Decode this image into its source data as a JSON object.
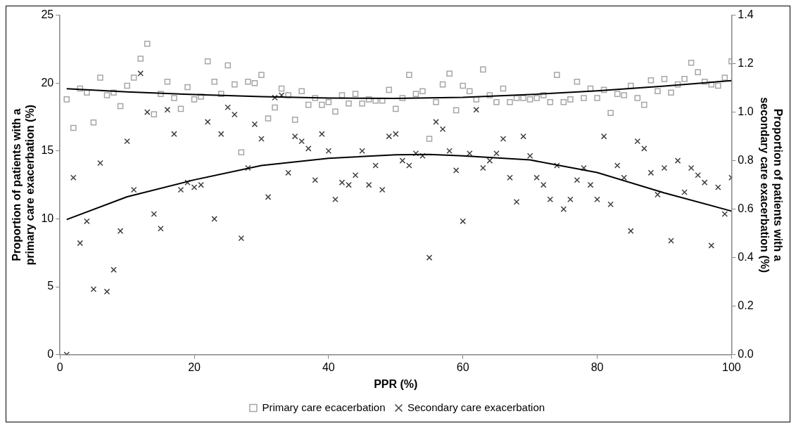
{
  "chart_data": {
    "type": "scatter",
    "xlabel": "PPR (%)",
    "ylabel": "Proportion of patients with a primary care exacerbation (%)",
    "y2label": "Proportion of patients with a secondary care exacerbation (%)",
    "xlim": [
      0,
      100
    ],
    "xticks": [
      0,
      20,
      40,
      60,
      80,
      100
    ],
    "ylim": [
      0,
      25
    ],
    "yticks": [
      0,
      5,
      10,
      15,
      20,
      25
    ],
    "y2lim": [
      0,
      1.4
    ],
    "y2ticks": [
      {
        "value": 0,
        "label": "0.0"
      },
      {
        "value": 0.2,
        "label": "0.2"
      },
      {
        "value": 0.4,
        "label": "0.4"
      },
      {
        "value": 0.6,
        "label": "0.6"
      },
      {
        "value": 0.8,
        "label": "0.8"
      },
      {
        "value": 1,
        "label": "1.0"
      },
      {
        "value": 1.2,
        "label": "1.2"
      },
      {
        "value": 1.4,
        "label": "1.4"
      }
    ],
    "grid": false,
    "legend": "bottom",
    "x": [
      1,
      2,
      3,
      4,
      5,
      6,
      7,
      8,
      9,
      10,
      11,
      12,
      13,
      14,
      15,
      16,
      17,
      18,
      19,
      20,
      21,
      22,
      23,
      24,
      25,
      26,
      27,
      28,
      29,
      30,
      31,
      32,
      33,
      34,
      35,
      36,
      37,
      38,
      39,
      40,
      41,
      42,
      43,
      44,
      45,
      46,
      47,
      48,
      49,
      50,
      51,
      52,
      53,
      54,
      55,
      56,
      57,
      58,
      59,
      60,
      61,
      62,
      63,
      64,
      65,
      66,
      67,
      68,
      69,
      70,
      71,
      72,
      73,
      74,
      75,
      76,
      77,
      78,
      79,
      80,
      81,
      82,
      83,
      84,
      85,
      86,
      87,
      88,
      89,
      90,
      91,
      92,
      93,
      94,
      95,
      96,
      97,
      98,
      99,
      100
    ],
    "series": [
      {
        "name": "Primary care ecacerbation",
        "marker": "square",
        "color": "#a6a6a6",
        "values": [
          18.8,
          16.7,
          19.6,
          19.3,
          17.1,
          20.4,
          19.1,
          19.3,
          18.3,
          19.8,
          20.4,
          21.8,
          22.9,
          17.7,
          19.2,
          20.1,
          18.9,
          18.1,
          19.7,
          18.8,
          19.0,
          21.6,
          20.1,
          19.2,
          21.3,
          19.9,
          14.9,
          20.1,
          20.0,
          20.6,
          17.4,
          18.2,
          19.6,
          19.1,
          17.3,
          19.4,
          18.4,
          18.9,
          18.4,
          18.6,
          17.9,
          19.1,
          18.5,
          19.2,
          18.5,
          18.8,
          18.7,
          18.7,
          19.5,
          18.1,
          18.9,
          20.6,
          19.2,
          19.4,
          15.9,
          18.6,
          19.9,
          20.7,
          18.0,
          19.8,
          19.4,
          18.8,
          21.0,
          19.1,
          18.6,
          19.6,
          18.6,
          18.9,
          18.9,
          18.8,
          18.9,
          19.1,
          18.6,
          20.6,
          18.6,
          18.8,
          20.1,
          18.9,
          19.6,
          18.9,
          19.5,
          17.8,
          19.2,
          19.1,
          19.8,
          18.9,
          18.4,
          20.2,
          19.4,
          20.3,
          19.3,
          19.9,
          20.3,
          21.5,
          20.8,
          20.1,
          19.9,
          19.8,
          20.4,
          21.6
        ]
      },
      {
        "name": "Secondary care exacerbation",
        "marker": "cross",
        "axis": "y2",
        "color": "#404040",
        "values": [
          0.0,
          0.73,
          0.46,
          0.55,
          0.27,
          0.79,
          0.26,
          0.35,
          0.51,
          0.88,
          0.68,
          1.16,
          1.0,
          0.58,
          0.52,
          1.01,
          0.91,
          0.68,
          0.71,
          0.69,
          0.7,
          0.96,
          0.56,
          0.91,
          1.02,
          0.99,
          0.48,
          0.77,
          0.95,
          0.89,
          0.65,
          1.06,
          1.07,
          0.75,
          0.9,
          0.88,
          0.85,
          0.72,
          0.91,
          0.84,
          0.64,
          0.71,
          0.7,
          0.74,
          0.84,
          0.7,
          0.78,
          0.68,
          0.9,
          0.91,
          0.8,
          0.78,
          0.83,
          0.82,
          0.4,
          0.96,
          0.93,
          0.84,
          0.76,
          0.55,
          0.83,
          1.01,
          0.77,
          0.8,
          0.83,
          0.89,
          0.73,
          0.63,
          0.9,
          0.82,
          0.73,
          0.7,
          0.64,
          0.78,
          0.6,
          0.64,
          0.72,
          0.77,
          0.7,
          0.64,
          0.9,
          0.62,
          0.78,
          0.73,
          0.51,
          0.88,
          0.85,
          0.75,
          0.66,
          0.77,
          0.47,
          0.8,
          0.67,
          0.77,
          0.74,
          0.71,
          0.45,
          0.69,
          0.58,
          0.73
        ]
      },
      {
        "type": "line",
        "marker": "none",
        "line_style": "solid",
        "color": "#000000",
        "x": [
          1,
          10,
          20,
          30,
          40,
          50,
          60,
          70,
          80,
          90,
          100
        ],
        "values": [
          19.58,
          19.35,
          19.15,
          19.0,
          18.9,
          18.87,
          18.95,
          19.15,
          19.43,
          19.78,
          20.18
        ]
      },
      {
        "type": "line",
        "marker": "none",
        "line_style": "solid",
        "axis": "y2",
        "color": "#000000",
        "x": [
          1,
          10,
          20,
          30,
          40,
          50,
          55,
          60,
          70,
          80,
          90,
          100
        ],
        "values": [
          0.557,
          0.651,
          0.721,
          0.78,
          0.81,
          0.824,
          0.826,
          0.82,
          0.803,
          0.751,
          0.667,
          0.592
        ]
      }
    ]
  }
}
